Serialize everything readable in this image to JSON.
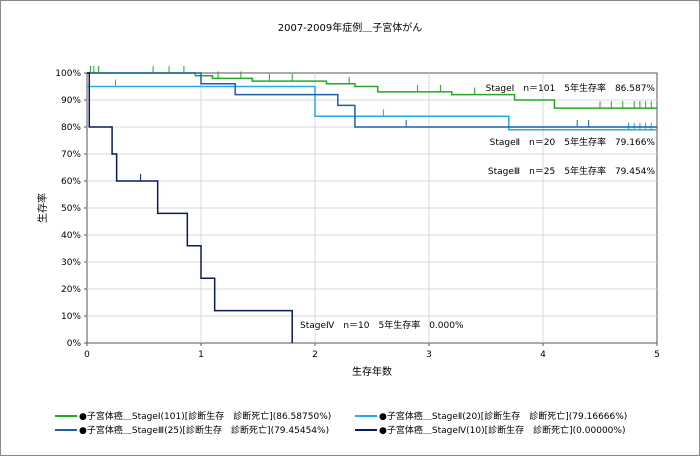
{
  "chart_data": {
    "type": "line",
    "step": true,
    "title": "2007-2009年症例＿子宮体がん",
    "xlabel": "生存年数",
    "ylabel": "生存率",
    "xlim": [
      0,
      5
    ],
    "ylim": [
      0,
      100
    ],
    "xticks": [
      "0",
      "1",
      "2",
      "3",
      "4",
      "5"
    ],
    "yticks": [
      "0%",
      "10%",
      "20%",
      "30%",
      "40%",
      "50%",
      "60%",
      "70%",
      "80%",
      "90%",
      "100%"
    ],
    "grid": true,
    "legend_position": "bottom",
    "series": [
      {
        "name": "●子宮体癌＿StageⅠ(101)[診断生存　診断死亡](86.58750%)",
        "annotation": "StageⅠ　n＝101　5年生存率　86.587%",
        "color": "#22aa22",
        "x": [
          0,
          0.95,
          1.1,
          1.45,
          2.1,
          2.35,
          2.55,
          3.2,
          3.75,
          4.1,
          5
        ],
        "y": [
          100,
          99,
          98,
          97,
          96,
          95,
          93,
          92,
          90,
          87,
          87
        ],
        "censor_x": [
          0.03,
          0.06,
          0.1,
          0.58,
          0.72,
          0.85,
          1.15,
          1.35,
          1.6,
          1.8,
          2.3,
          2.9,
          3.1,
          3.4,
          4.5,
          4.6,
          4.7,
          4.8,
          4.85,
          4.9,
          4.95
        ]
      },
      {
        "name": "●子宮体癌＿StageⅡ(20)[診断生存　診断死亡](79.16666%)",
        "annotation": "StageⅡ　n＝20　5年生存率　79.166%",
        "color": "#22aaee",
        "x": [
          0,
          1.0,
          2.0,
          2.4,
          3.7,
          5
        ],
        "y": [
          95,
          95,
          84,
          84,
          79,
          79
        ],
        "censor_x": [
          0.25,
          2.6,
          4.75,
          4.8,
          4.85,
          4.9,
          4.95
        ]
      },
      {
        "name": "●子宮体癌＿StageⅢ(25)[診断生存　診断死亡](79.45454%)",
        "annotation": "StageⅢ　n＝25　5年生存率　79.454%",
        "color": "#1f5fa8",
        "x": [
          0,
          1.0,
          1.3,
          1.55,
          2.2,
          2.35,
          5
        ],
        "y": [
          100,
          96,
          92,
          92,
          88,
          80,
          80
        ],
        "censor_x": [
          2.8,
          4.3,
          4.4
        ]
      },
      {
        "name": "●子宮体癌＿StageⅣ(10)[診断生存　診断死亡](0.00000%)",
        "annotation": "StageⅣ　n＝10　5年生存率　0.000%",
        "color": "#0a1a5a",
        "x": [
          0,
          0.02,
          0.22,
          0.26,
          0.62,
          0.88,
          1.0,
          1.12,
          1.8
        ],
        "y": [
          100,
          80,
          70,
          60,
          48,
          36,
          24,
          12,
          0
        ],
        "censor_x": [
          0.47
        ]
      }
    ]
  }
}
